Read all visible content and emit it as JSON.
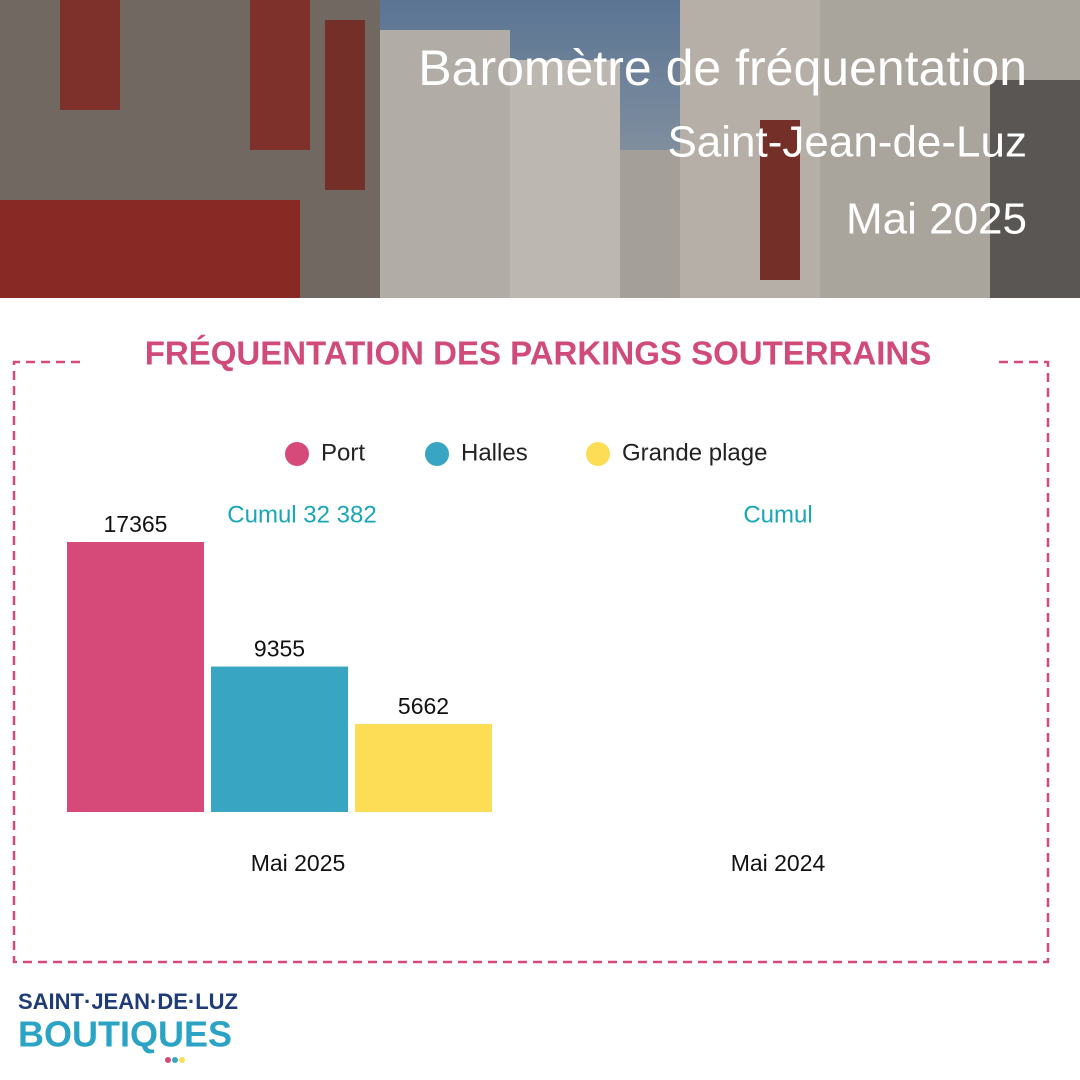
{
  "header": {
    "title": "Baromètre de fréquentation",
    "place": "Saint-Jean-de-Luz",
    "period": "Mai 2025"
  },
  "chart_data": {
    "type": "bar",
    "title": "FRÉQUENTATION DES PARKINGS SOUTERRAINS",
    "categories": [
      "Mai 2025",
      "Mai 2024"
    ],
    "series": [
      {
        "name": "Port",
        "color": "#d64a7a",
        "values": [
          17365,
          null
        ]
      },
      {
        "name": "Halles",
        "color": "#38a6c2",
        "values": [
          9355,
          null
        ]
      },
      {
        "name": "Grande plage",
        "color": "#fddc56",
        "values": [
          5662,
          null
        ]
      }
    ],
    "annotations": [
      "Cumul 32 382",
      "Cumul"
    ]
  },
  "logo": {
    "line1": "SAINT·JEAN·DE·LUZ",
    "line2": "BOUTIQUES"
  }
}
